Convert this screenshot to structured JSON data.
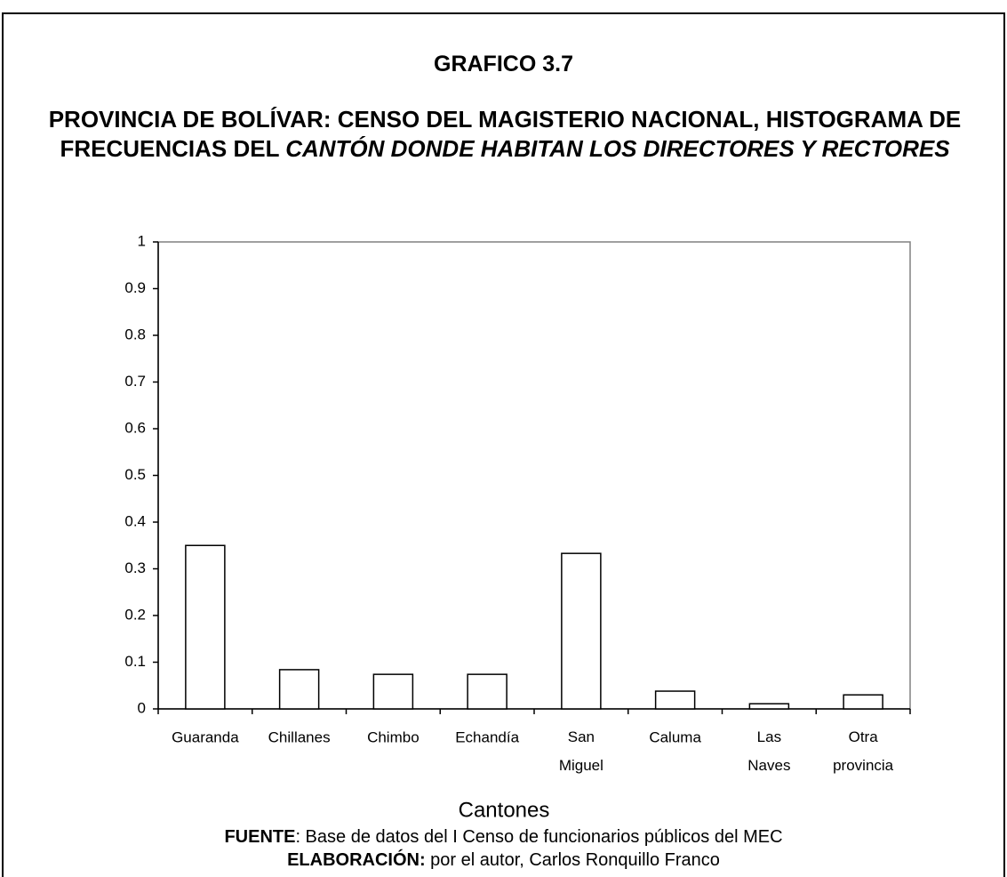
{
  "header": {
    "title": "GRAFICO 3.7",
    "subtitle": "PROVINCIA DE BOLÍVAR: CENSO DEL MAGISTERIO NACIONAL, HISTOGRAMA DE FRECUENCIAS DEL ",
    "subtitle_italic": "CANTÓN DONDE HABITAN LOS DIRECTORES Y RECTORES"
  },
  "chart_data": {
    "type": "bar",
    "x_label": "Cantones",
    "categories": [
      "Guaranda",
      "Chillanes",
      "Chimbo",
      "Echandía",
      "San Miguel",
      "Caluma",
      "Las Naves",
      "Otra provincia"
    ],
    "values": [
      0.35,
      0.084,
      0.074,
      0.074,
      0.333,
      0.038,
      0.011,
      0.03
    ],
    "color": "#ffffff",
    "ylim": [
      0,
      1
    ],
    "yticks": [
      0,
      0.1,
      0.2,
      0.3,
      0.4,
      0.5,
      0.6,
      0.7,
      0.8,
      0.9,
      1
    ],
    "grid": false
  },
  "footer": {
    "source_label": "FUENTE",
    "source_text": ": Base de datos del I Censo de funcionarios públicos del MEC",
    "credit_label": "ELABORACIÓN:",
    "credit_text": " por el autor, Carlos Ronquillo Franco"
  }
}
